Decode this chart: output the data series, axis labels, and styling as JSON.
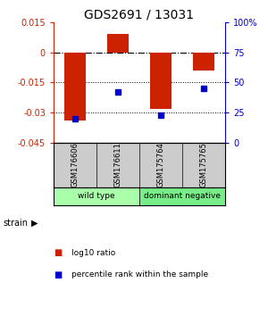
{
  "title": "GDS2691 / 13031",
  "samples": [
    "GSM176606",
    "GSM176611",
    "GSM175764",
    "GSM175765"
  ],
  "log10_ratio": [
    -0.034,
    0.009,
    -0.028,
    -0.009
  ],
  "percentile_rank": [
    20,
    42,
    23,
    45
  ],
  "bar_color": "#cc2200",
  "dot_color": "#0000cc",
  "ylim_left": [
    -0.045,
    0.015
  ],
  "ylim_right": [
    0,
    100
  ],
  "yticks_left": [
    0.015,
    0,
    -0.015,
    -0.03,
    -0.045
  ],
  "ytick_left_labels": [
    "0.015",
    "0",
    "-0.015",
    "-0.03",
    "-0.045"
  ],
  "yticks_right": [
    100,
    75,
    50,
    25,
    0
  ],
  "ytick_right_labels": [
    "100%",
    "75",
    "50",
    "25",
    "0"
  ],
  "hline_dotted_vals": [
    -0.015,
    -0.03
  ],
  "background_color": "#ffffff",
  "sample_panel_color": "#cccccc",
  "group_colors": [
    "#aaffaa",
    "#77ee88"
  ],
  "group_labels": [
    "wild type",
    "dominant negative"
  ],
  "group_boundaries": [
    0,
    2,
    4
  ],
  "strain_label": "strain",
  "legend_items": [
    {
      "color": "#cc2200",
      "label": "log10 ratio"
    },
    {
      "color": "#0000cc",
      "label": "percentile rank within the sample"
    }
  ]
}
